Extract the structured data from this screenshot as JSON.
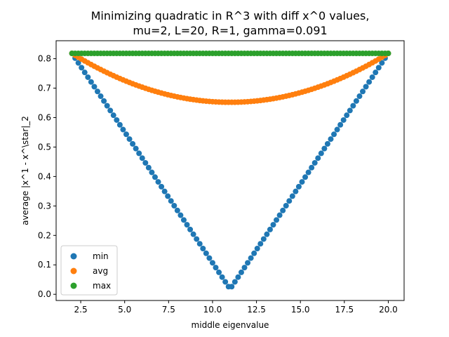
{
  "chart_data": {
    "type": "scatter",
    "title": "Minimizing quadratic in R^3 with diff x^0 values,",
    "subtitle": "mu=2, L=20, R=1, gamma=0.091",
    "xlabel": "middle eigenvalue",
    "ylabel": "average |x^1 - x^\\star|_2",
    "xlim": [
      1.1,
      20.9
    ],
    "ylim": [
      -0.021,
      0.861
    ],
    "x_ticks": [
      2.5,
      5.0,
      7.5,
      10.0,
      12.5,
      15.0,
      17.5,
      20.0
    ],
    "x_tick_labels": [
      "2.5",
      "5.0",
      "7.5",
      "10.0",
      "12.5",
      "15.0",
      "17.5",
      "20.0"
    ],
    "y_ticks": [
      0.0,
      0.1,
      0.2,
      0.3,
      0.4,
      0.5,
      0.6,
      0.7,
      0.8
    ],
    "y_tick_labels": [
      "0.0",
      "0.1",
      "0.2",
      "0.3",
      "0.4",
      "0.5",
      "0.6",
      "0.7",
      "0.8"
    ],
    "x_range": [
      2,
      20
    ],
    "num_points": 100,
    "legend_position": "lower-left",
    "grid": false,
    "series": [
      {
        "name": "min",
        "color": "#1f77b4",
        "curve": "abs-v",
        "vertex_x": 11.0,
        "endpoint_y": 0.818,
        "vertex_y": 0.018
      },
      {
        "name": "avg",
        "color": "#ff7f0e",
        "curve": "parabola",
        "vertex_x": 11.0,
        "endpoint_y": 0.818,
        "vertex_y": 0.652
      },
      {
        "name": "max",
        "color": "#2ca02c",
        "curve": "constant",
        "value": 0.818
      }
    ]
  }
}
